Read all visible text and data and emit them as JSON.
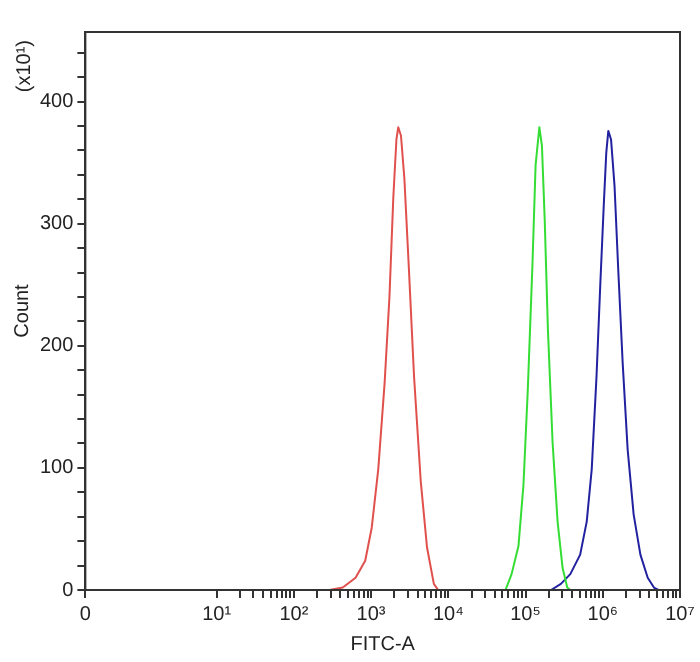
{
  "chart_data": {
    "type": "line",
    "xlabel": "FITC-A",
    "ylabel": "Count",
    "annotations": [
      "(x10¹)"
    ],
    "log": "x",
    "grid": false,
    "legend": false,
    "marker": "none",
    "line_style": "solid",
    "xlim": [
      0.2,
      10000000
    ],
    "ylim": [
      0,
      457
    ],
    "xticks": [
      {
        "value": 0.2,
        "label": "0"
      },
      {
        "value": 10,
        "label": "10¹"
      },
      {
        "value": 100,
        "label": "10²"
      },
      {
        "value": 1000,
        "label": "10³"
      },
      {
        "value": 10000,
        "label": "10⁴"
      },
      {
        "value": 100000,
        "label": "10⁵"
      },
      {
        "value": 1000000,
        "label": "10⁶"
      },
      {
        "value": 10000000,
        "label": "10⁷"
      },
      {
        "value": 20,
        "label": null
      },
      {
        "value": 30,
        "label": null
      },
      {
        "value": 40,
        "label": null
      },
      {
        "value": 50,
        "label": null
      },
      {
        "value": 60,
        "label": null
      },
      {
        "value": 70,
        "label": null
      },
      {
        "value": 80,
        "label": null
      },
      {
        "value": 90,
        "label": null
      },
      {
        "value": 200,
        "label": null
      },
      {
        "value": 300,
        "label": null
      },
      {
        "value": 400,
        "label": null
      },
      {
        "value": 500,
        "label": null
      },
      {
        "value": 600,
        "label": null
      },
      {
        "value": 700,
        "label": null
      },
      {
        "value": 800,
        "label": null
      },
      {
        "value": 900,
        "label": null
      },
      {
        "value": 2000,
        "label": null
      },
      {
        "value": 3000,
        "label": null
      },
      {
        "value": 4000,
        "label": null
      },
      {
        "value": 5000,
        "label": null
      },
      {
        "value": 6000,
        "label": null
      },
      {
        "value": 7000,
        "label": null
      },
      {
        "value": 8000,
        "label": null
      },
      {
        "value": 9000,
        "label": null
      },
      {
        "value": 20000,
        "label": null
      },
      {
        "value": 30000,
        "label": null
      },
      {
        "value": 40000,
        "label": null
      },
      {
        "value": 50000,
        "label": null
      },
      {
        "value": 60000,
        "label": null
      },
      {
        "value": 70000,
        "label": null
      },
      {
        "value": 80000,
        "label": null
      },
      {
        "value": 90000,
        "label": null
      },
      {
        "value": 200000,
        "label": null
      },
      {
        "value": 300000,
        "label": null
      },
      {
        "value": 400000,
        "label": null
      },
      {
        "value": 500000,
        "label": null
      },
      {
        "value": 600000,
        "label": null
      },
      {
        "value": 700000,
        "label": null
      },
      {
        "value": 800000,
        "label": null
      },
      {
        "value": 900000,
        "label": null
      },
      {
        "value": 2000000,
        "label": null
      },
      {
        "value": 3000000,
        "label": null
      },
      {
        "value": 4000000,
        "label": null
      },
      {
        "value": 5000000,
        "label": null
      },
      {
        "value": 6000000,
        "label": null
      },
      {
        "value": 7000000,
        "label": null
      },
      {
        "value": 8000000,
        "label": null
      },
      {
        "value": 9000000,
        "label": null
      }
    ],
    "yticks": [
      0,
      100,
      200,
      300,
      400,
      {
        "value": 20,
        "label": null
      },
      {
        "value": 40,
        "label": null
      },
      {
        "value": 60,
        "label": null
      },
      {
        "value": 80,
        "label": null
      },
      {
        "value": 120,
        "label": null
      },
      {
        "value": 140,
        "label": null
      },
      {
        "value": 160,
        "label": null
      },
      {
        "value": 180,
        "label": null
      },
      {
        "value": 220,
        "label": null
      },
      {
        "value": 240,
        "label": null
      },
      {
        "value": 260,
        "label": null
      },
      {
        "value": 280,
        "label": null
      },
      {
        "value": 320,
        "label": null
      },
      {
        "value": 340,
        "label": null
      },
      {
        "value": 360,
        "label": null
      },
      {
        "value": 380,
        "label": null
      },
      {
        "value": 420,
        "label": null
      },
      {
        "value": 440,
        "label": null
      }
    ],
    "series": [
      {
        "color": "#e0504c",
        "x": [
          290,
          430,
          630,
          840,
          1020,
          1240,
          1500,
          1730,
          1940,
          2130,
          2250,
          2440,
          2700,
          3100,
          3600,
          4400,
          5300,
          6500,
          7400
        ],
        "values": [
          0,
          2,
          10,
          24,
          51,
          99,
          170,
          240,
          321,
          369,
          379,
          372,
          337,
          261,
          175,
          89,
          35,
          5,
          0
        ]
      },
      {
        "color": "#33dd33",
        "x": [
          55000,
          66000,
          81000,
          94000,
          107000,
          123000,
          135000,
          151000,
          163000,
          177000,
          195000,
          224000,
          260000,
          302000,
          347000,
          380000
        ],
        "values": [
          0,
          13,
          36,
          86,
          164,
          267,
          348,
          379,
          364,
          304,
          213,
          121,
          56,
          18,
          2,
          0
        ]
      },
      {
        "color": "#2222a0",
        "x": [
          214000,
          287000,
          380000,
          510000,
          620000,
          720000,
          830000,
          930000,
          1030000,
          1110000,
          1180000,
          1280000,
          1420000,
          1590000,
          1810000,
          2100000,
          2510000,
          3070000,
          3820000,
          4600000,
          5250000
        ],
        "values": [
          0,
          5,
          13,
          29,
          56,
          99,
          175,
          251,
          315,
          358,
          376,
          369,
          331,
          261,
          186,
          115,
          62,
          29,
          10,
          2,
          0
        ]
      }
    ]
  }
}
